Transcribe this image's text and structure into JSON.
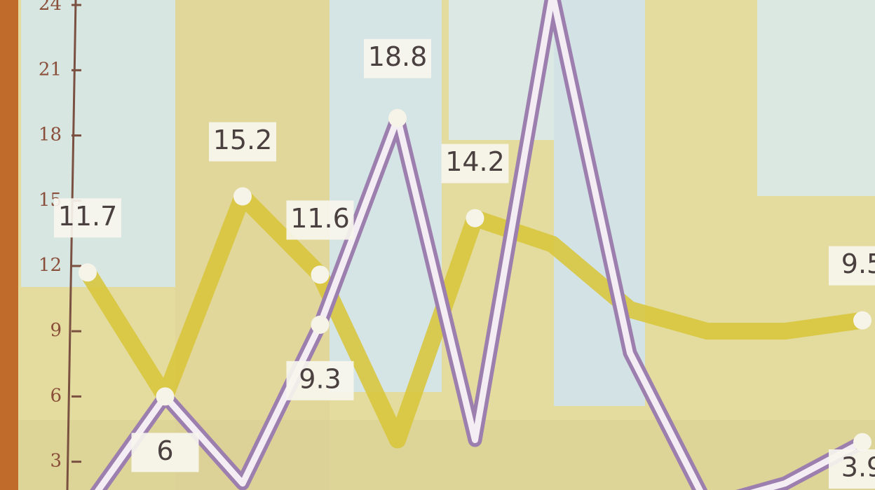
{
  "chart_data": {
    "type": "line",
    "categories": [
      null,
      null,
      null,
      null,
      null,
      null,
      null,
      null,
      null,
      null,
      null
    ],
    "series": [
      {
        "color": "#d8c437",
        "values": [
          11.7,
          6,
          15.2,
          11.6,
          4,
          14.2,
          13,
          10,
          9,
          9,
          9.5
        ],
        "labeled_points": [
          0,
          2,
          3,
          5,
          10
        ]
      },
      {
        "color": "#9c7fae",
        "values": [
          1,
          6,
          2,
          9.3,
          18.8,
          4,
          24.5,
          8,
          1,
          2,
          3.9
        ],
        "labeled_points": [
          1,
          3,
          4,
          10
        ]
      }
    ],
    "ylim": [
      1.7,
      24.1
    ],
    "yticks": [
      3,
      6,
      9,
      12,
      15,
      18,
      21,
      24
    ]
  }
}
